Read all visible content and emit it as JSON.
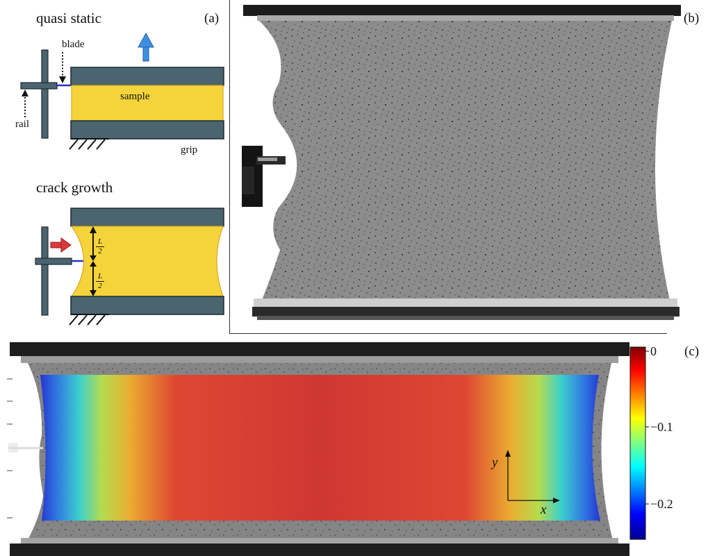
{
  "panel_a": {
    "label": "(a)",
    "quasi_static": {
      "title": "quasi static",
      "blade_label": "blade",
      "sample_label": "sample",
      "rail_label": "rail",
      "grip_label": "grip"
    },
    "crack_growth": {
      "title": "crack growth",
      "half_length": {
        "numerator": "L",
        "denominator": "2"
      }
    }
  },
  "panel_b": {
    "label": "(b)"
  },
  "panel_c": {
    "label": "(c)",
    "axes": {
      "x": "x",
      "y": "y"
    },
    "colorbar": {
      "colormap": "jet",
      "ticks": [
        "0",
        "−0.1",
        "−0.2"
      ]
    }
  },
  "colors": {
    "grip": "#4a6470",
    "sample": "#f5d43b",
    "sample_edge": "#d9a520",
    "blade": "#2233cc",
    "arrow_up": "#3f8fe0",
    "arrow_right": "#d83b3b"
  }
}
